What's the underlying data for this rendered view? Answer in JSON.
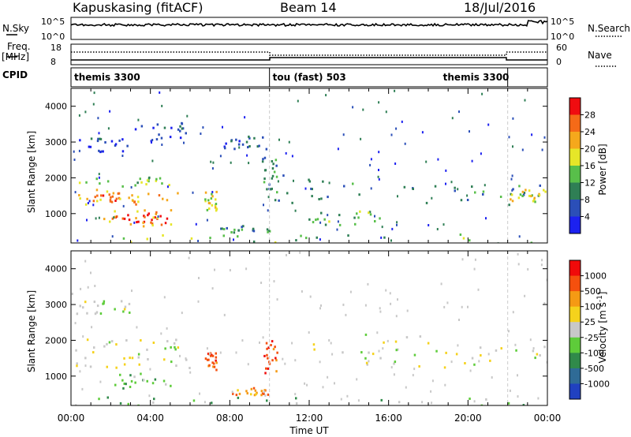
{
  "header": {
    "station": "Kapuskasing (fitACF)",
    "beam": "Beam 14",
    "date": "18/Jul/2016"
  },
  "strip_left": {
    "nsky_label": "N.Sky",
    "nsky_ticks": [
      "10^5",
      "10^0"
    ],
    "freq_label": "Freq.",
    "freq_unit": "[MHz]",
    "freq_ticks": [
      "18",
      "8"
    ],
    "cpid_label": "CPID"
  },
  "strip_right": {
    "nsearch_label": "N.Search",
    "nsearch_ticks": [
      "10^5",
      "10^0"
    ],
    "nave_label": "Nave",
    "nave_ticks": [
      "60",
      "0"
    ]
  },
  "cpid_segments": [
    {
      "label": "themis 3300",
      "start_hour": 0,
      "end_hour": 10
    },
    {
      "label": "tou (fast) 503",
      "start_hour": 10,
      "end_hour": 22
    },
    {
      "label": "themis 3300",
      "start_hour": 22,
      "end_hour": 24
    }
  ],
  "chart_data": [
    {
      "type": "heatmap",
      "panel": "power",
      "xlabel": "",
      "ylabel": "Slant Range [km]",
      "xlim": [
        0,
        24
      ],
      "ylim": [
        180,
        4500
      ],
      "yticks": [
        1000,
        2000,
        3000,
        4000
      ],
      "colorbar": {
        "label": "Power [dB]",
        "ticks": [
          "4",
          "8",
          "12",
          "16",
          "20",
          "24",
          "28"
        ],
        "colors": [
          "#1c21f0",
          "#2b4fb8",
          "#2f7f55",
          "#58bf4a",
          "#e6e628",
          "#f5a81c",
          "#f56a18",
          "#f00c10"
        ]
      },
      "regions": [
        {
          "t0": 0.1,
          "t1": 6.0,
          "r0": 1250,
          "r1": 1700,
          "level": 5
        },
        {
          "t0": 0.2,
          "t1": 3.2,
          "r0": 1350,
          "r1": 1600,
          "level": 6
        },
        {
          "t0": 2.2,
          "t1": 4.8,
          "r0": 700,
          "r1": 1050,
          "level": 7
        },
        {
          "t0": 1.6,
          "t1": 5.2,
          "r0": 620,
          "r1": 1150,
          "level": 5
        },
        {
          "t0": 0.2,
          "t1": 5.5,
          "r0": 1750,
          "r1": 2050,
          "level": 3
        },
        {
          "t0": 6.7,
          "t1": 7.3,
          "r0": 1100,
          "r1": 1700,
          "level": 4
        },
        {
          "t0": 0.2,
          "t1": 3.0,
          "r0": 2750,
          "r1": 3200,
          "level": 1
        },
        {
          "t0": 3.0,
          "t1": 5.8,
          "r0": 3050,
          "r1": 3600,
          "level": 1
        },
        {
          "t0": 7.5,
          "t1": 9.8,
          "r0": 2800,
          "r1": 3200,
          "level": 1
        },
        {
          "t0": 9.6,
          "t1": 10.4,
          "r0": 1700,
          "r1": 2600,
          "level": 2
        },
        {
          "t0": 10.2,
          "t1": 18.0,
          "r0": 1300,
          "r1": 2200,
          "level": 2
        },
        {
          "t0": 11.5,
          "t1": 16.0,
          "r0": 700,
          "r1": 1100,
          "level": 3
        },
        {
          "t0": 17.0,
          "t1": 24.0,
          "r0": 1250,
          "r1": 1850,
          "level": 2
        },
        {
          "t0": 22.0,
          "t1": 24.0,
          "r0": 1350,
          "r1": 1700,
          "level": 4
        },
        {
          "t0": 0.5,
          "t1": 24.0,
          "r0": 200,
          "r1": 450,
          "level": 3
        },
        {
          "t0": 7.5,
          "t1": 10.0,
          "r0": 500,
          "r1": 700,
          "level": 2
        }
      ]
    },
    {
      "type": "heatmap",
      "panel": "velocity",
      "xlabel": "Time UT",
      "ylabel": "Slant Range [km]",
      "xlim": [
        0,
        24
      ],
      "ylim": [
        180,
        4500
      ],
      "yticks": [
        1000,
        2000,
        3000,
        4000
      ],
      "xticks": [
        "00:00",
        "04:00",
        "08:00",
        "12:00",
        "16:00",
        "20:00",
        "00:00"
      ],
      "colorbar": {
        "label": "Velocity [m s^-1]",
        "ticks": [
          "1000",
          "500",
          "100",
          "25",
          "-25",
          "-100",
          "-500",
          "-1000"
        ],
        "colors": [
          "#2041c0",
          "#2f6b96",
          "#308a4a",
          "#5ecc3a",
          "#c8c8c8",
          "#f5d21c",
          "#f59a14",
          "#f5500e",
          "#f00a0a"
        ]
      },
      "regions": [
        {
          "t0": 0.1,
          "t1": 6.0,
          "r0": 1250,
          "r1": 1700,
          "level": 4
        },
        {
          "t0": 2.0,
          "t1": 5.0,
          "r0": 650,
          "r1": 1100,
          "level": 3
        },
        {
          "t0": 6.7,
          "t1": 7.3,
          "r0": 1100,
          "r1": 1700,
          "level": 7
        },
        {
          "t0": 0.2,
          "t1": 5.5,
          "r0": 1750,
          "r1": 2050,
          "level": 4
        },
        {
          "t0": 0.2,
          "t1": 3.0,
          "r0": 2750,
          "r1": 3200,
          "level": 4
        },
        {
          "t0": 9.6,
          "t1": 10.4,
          "r0": 1100,
          "r1": 2100,
          "level": 7
        },
        {
          "t0": 10.2,
          "t1": 18.0,
          "r0": 1300,
          "r1": 2200,
          "level": 4
        },
        {
          "t0": 17.0,
          "t1": 24.0,
          "r0": 1250,
          "r1": 1850,
          "level": 4
        },
        {
          "t0": 8.0,
          "t1": 10.0,
          "r0": 500,
          "r1": 700,
          "level": 6
        },
        {
          "t0": 0.5,
          "t1": 24.0,
          "r0": 200,
          "r1": 450,
          "level": 3
        }
      ]
    }
  ]
}
